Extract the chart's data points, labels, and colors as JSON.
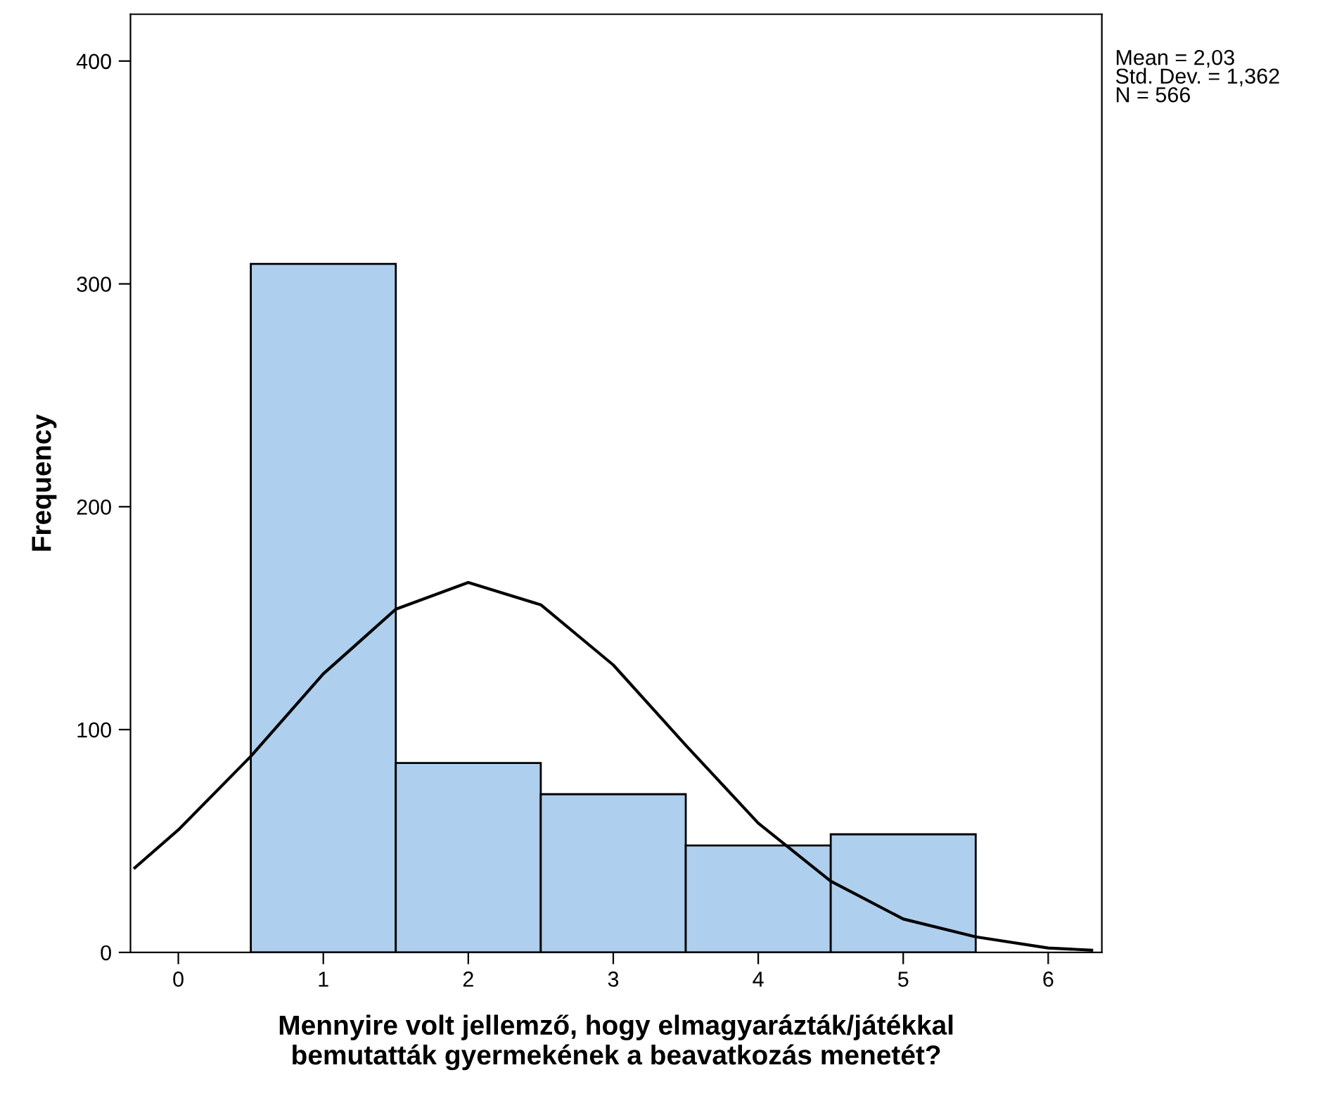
{
  "chart_data": {
    "type": "histogram",
    "xlabel": "Mennyire volt jellemző, hogy elmagyarázták/játékkal\nbemutatták gyermekének a beavatkozás menetét?",
    "ylabel": "Frequency",
    "bins": [
      0.5,
      1.5,
      2.5,
      3.5,
      4.5,
      5.5
    ],
    "values": [
      309,
      85,
      71,
      48,
      53
    ],
    "color": "#aecfed",
    "series": [
      {
        "type": "line",
        "color": "#000000",
        "x": [
          -0.3,
          0,
          0.5,
          1,
          1.5,
          2,
          2.5,
          3,
          3.5,
          4,
          4.5,
          5,
          5.5,
          6,
          6.3
        ],
        "values": [
          38,
          55,
          88,
          125,
          154,
          166,
          156,
          129,
          93,
          58,
          32,
          15,
          7,
          2,
          1
        ]
      }
    ],
    "xlim": [
      -0.33,
      6.37
    ],
    "ylim": [
      0,
      421
    ],
    "xticks": [
      0,
      1,
      2,
      3,
      4,
      5,
      6
    ],
    "yticks": [
      0,
      100,
      200,
      300,
      400
    ],
    "grid": false,
    "legend": false,
    "annotations": [
      "Mean = 2,03",
      "Std. Dev. = 1,362",
      "N = 566"
    ]
  }
}
